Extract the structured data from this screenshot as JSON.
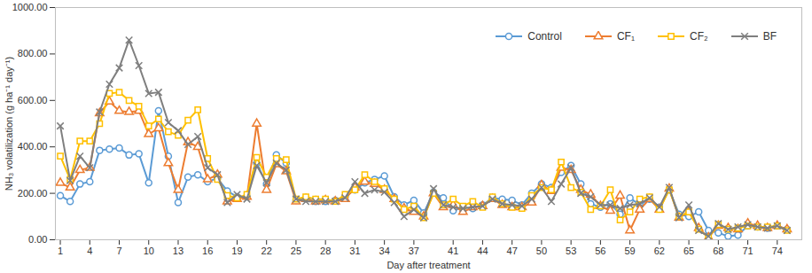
{
  "chart_data": {
    "type": "line",
    "x_label": "Day after treatment",
    "y_label": "NH₃ volatilization (g ha⁻¹ day⁻¹)",
    "x": [
      1,
      2,
      3,
      4,
      5,
      6,
      7,
      8,
      9,
      10,
      11,
      12,
      13,
      14,
      15,
      16,
      17,
      18,
      19,
      20,
      21,
      22,
      23,
      24,
      25,
      26,
      27,
      28,
      29,
      30,
      31,
      32,
      33,
      34,
      35,
      36,
      37,
      38,
      39,
      40,
      41,
      42,
      43,
      44,
      45,
      46,
      47,
      48,
      49,
      50,
      51,
      52,
      53,
      54,
      55,
      56,
      57,
      58,
      59,
      60,
      61,
      62,
      63,
      64,
      65,
      66,
      67,
      68,
      69,
      70,
      71,
      72,
      73,
      74,
      75
    ],
    "xlim": [
      0.5,
      76.5
    ],
    "xticks": [
      1,
      4,
      7,
      10,
      13,
      16,
      19,
      22,
      25,
      28,
      31,
      34,
      37,
      41,
      44,
      47,
      50,
      53,
      56,
      59,
      62,
      65,
      68,
      71,
      74
    ],
    "ylim": [
      0,
      1000
    ],
    "yticks": [
      {
        "value": 0,
        "label": "0.00"
      },
      {
        "value": 200,
        "label": "200.00"
      },
      {
        "value": 400,
        "label": "400.00"
      },
      {
        "value": 600,
        "label": "600.00"
      },
      {
        "value": 800,
        "label": "800.00"
      },
      {
        "value": 1000,
        "label": "1000.00"
      }
    ],
    "grid": false,
    "legend": "top-right",
    "series": [
      {
        "name": "Control",
        "color": "#5b9bd5",
        "marker": "circle",
        "values": [
          190,
          165,
          240,
          250,
          385,
          390,
          395,
          365,
          370,
          245,
          555,
          360,
          160,
          270,
          280,
          250,
          265,
          210,
          185,
          185,
          330,
          240,
          365,
          330,
          170,
          180,
          165,
          165,
          170,
          185,
          215,
          245,
          260,
          275,
          185,
          150,
          170,
          115,
          205,
          180,
          125,
          140,
          135,
          150,
          180,
          175,
          170,
          150,
          200,
          240,
          225,
          290,
          320,
          240,
          155,
          140,
          155,
          110,
          180,
          150,
          175,
          140,
          215,
          110,
          100,
          120,
          40,
          30,
          15,
          20,
          60,
          55,
          50,
          60,
          45
        ]
      },
      {
        "name": "CF₁",
        "color": "#ed7d31",
        "marker": "triangle",
        "values": [
          245,
          225,
          300,
          310,
          545,
          595,
          555,
          550,
          555,
          455,
          480,
          330,
          215,
          420,
          400,
          260,
          280,
          165,
          175,
          185,
          500,
          215,
          325,
          295,
          165,
          175,
          165,
          170,
          165,
          175,
          225,
          250,
          240,
          215,
          175,
          135,
          120,
          100,
          200,
          140,
          150,
          120,
          140,
          145,
          175,
          150,
          140,
          140,
          160,
          235,
          210,
          310,
          300,
          215,
          195,
          145,
          125,
          190,
          40,
          130,
          175,
          130,
          220,
          95,
          120,
          50,
          10,
          60,
          50,
          45,
          70,
          60,
          50,
          60,
          45
        ]
      },
      {
        "name": "CF₂",
        "color": "#ffc000",
        "marker": "square",
        "values": [
          360,
          260,
          425,
          425,
          500,
          630,
          635,
          600,
          575,
          490,
          520,
          465,
          450,
          515,
          560,
          350,
          260,
          190,
          180,
          195,
          355,
          270,
          350,
          345,
          175,
          185,
          175,
          175,
          165,
          195,
          215,
          280,
          250,
          220,
          175,
          130,
          145,
          95,
          200,
          150,
          175,
          145,
          165,
          140,
          185,
          155,
          140,
          135,
          190,
          225,
          215,
          335,
          225,
          205,
          130,
          145,
          215,
          85,
          120,
          175,
          185,
          130,
          215,
          100,
          120,
          45,
          10,
          65,
          45,
          50,
          60,
          55,
          55,
          60,
          40
        ]
      },
      {
        "name": "BF",
        "color": "#7f7f7f",
        "marker": "times",
        "values": [
          490,
          255,
          360,
          310,
          550,
          670,
          740,
          860,
          750,
          630,
          635,
          505,
          470,
          410,
          445,
          310,
          280,
          160,
          195,
          175,
          320,
          245,
          330,
          300,
          175,
          165,
          165,
          165,
          165,
          180,
          250,
          200,
          215,
          205,
          160,
          100,
          130,
          95,
          220,
          150,
          140,
          135,
          140,
          145,
          175,
          155,
          150,
          145,
          175,
          225,
          165,
          240,
          310,
          200,
          185,
          150,
          150,
          135,
          150,
          155,
          180,
          140,
          225,
          95,
          150,
          40,
          15,
          70,
          45,
          55,
          65,
          55,
          50,
          60,
          40
        ]
      }
    ]
  }
}
